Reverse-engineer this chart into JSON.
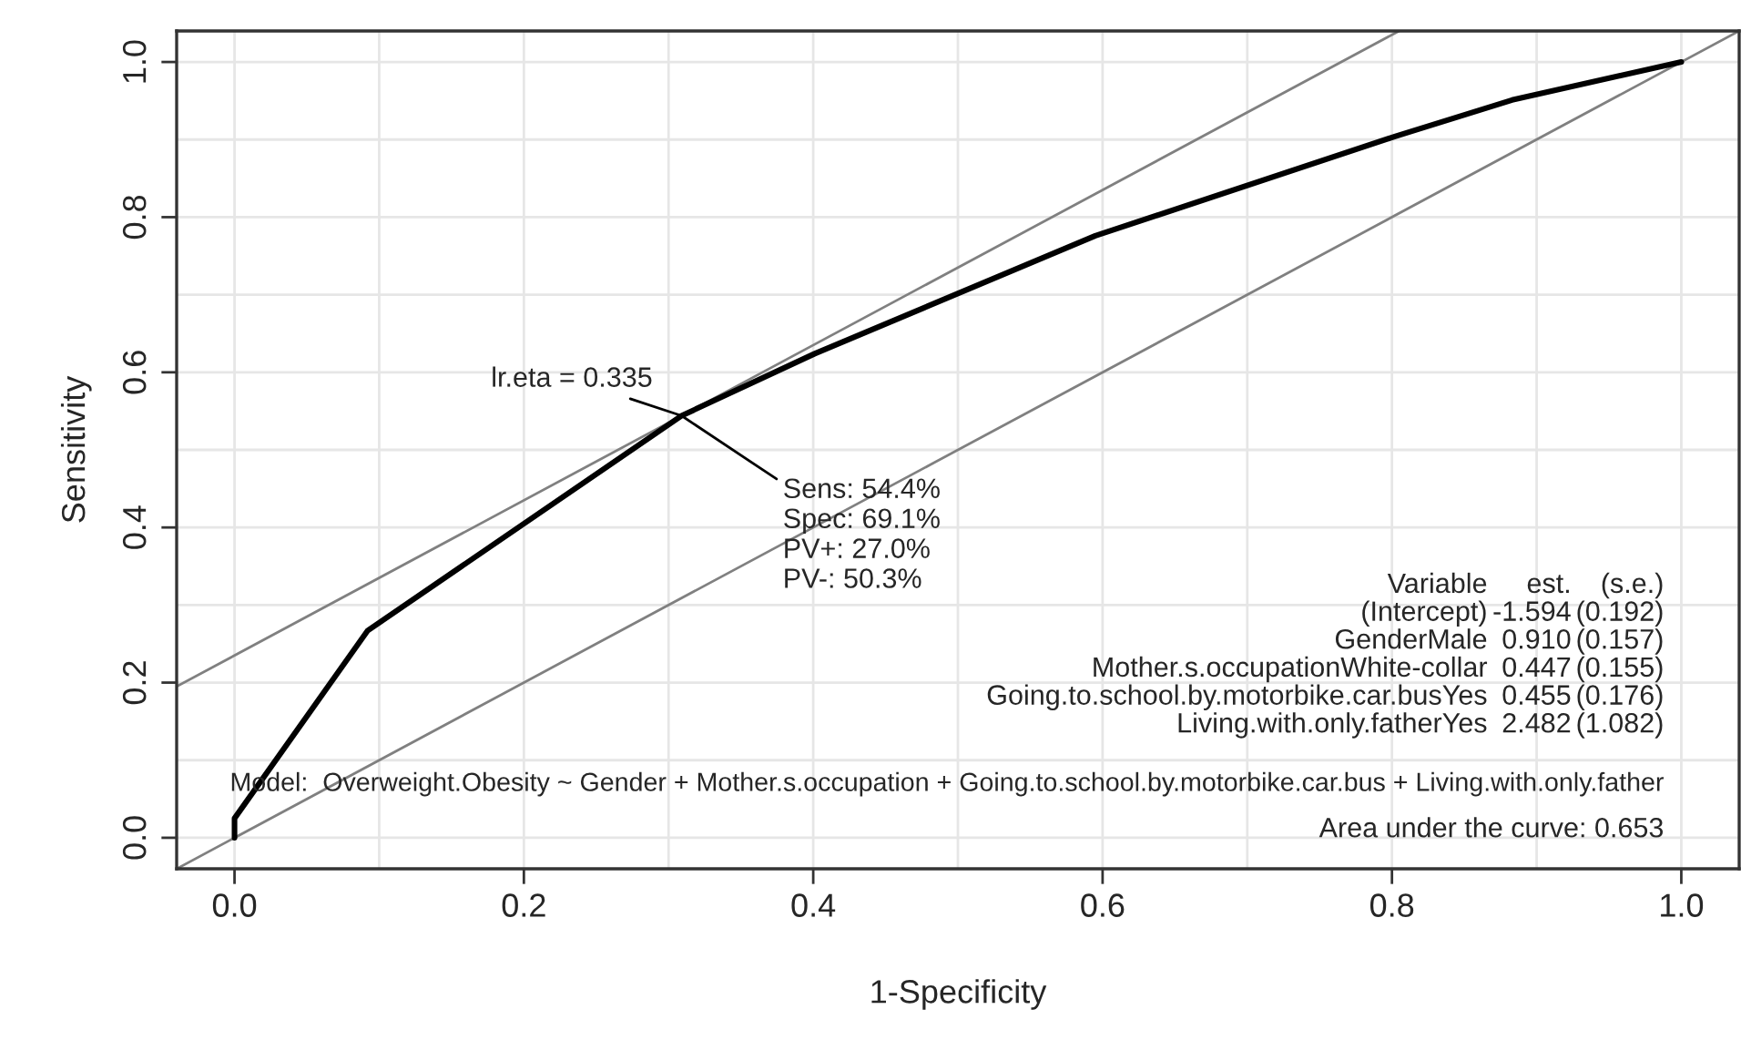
{
  "chart_data": {
    "type": "line",
    "xlabel": "1-Specificity",
    "ylabel": "Sensitivity",
    "xlim": [
      -0.04,
      1.04
    ],
    "ylim": [
      -0.04,
      1.04
    ],
    "xticks": [
      {
        "value": 0,
        "label": "0.0"
      },
      0.2,
      0.4,
      0.6,
      0.8,
      {
        "value": 1,
        "label": "1.0"
      }
    ],
    "yticks": [
      {
        "value": 0,
        "label": "0.0"
      },
      0.2,
      0.4,
      0.6,
      0.8,
      {
        "value": 1,
        "label": "1.0"
      }
    ],
    "grid": true,
    "legend": false,
    "marker": "none",
    "line_style": "solid",
    "series": [
      {
        "color": "#000000",
        "x": [
          0,
          0,
          0.092,
          0.309,
          0.401,
          0.595,
          0.802,
          0.883,
          1.0
        ],
        "values": [
          0,
          0.025,
          0.267,
          0.544,
          0.624,
          0.776,
          0.904,
          0.951,
          1.0
        ]
      },
      {
        "color": "#808080",
        "x": [
          -0.04,
          0.805
        ],
        "values": [
          0.195,
          1.04
        ]
      },
      {
        "color": "#808080",
        "x": [
          -0.04,
          1.04
        ],
        "values": [
          -0.04,
          1.04
        ]
      }
    ],
    "annotations": [
      {
        "text": "lr.eta = 0.335",
        "x": 0.309,
        "y": 0.544
      },
      {
        "text": "Sens: 54.4%\nSpec: 69.1%\nPV+: 27.0%\nPV-: 50.3%",
        "x": 0.309,
        "y": 0.544
      },
      "Variable",
      "est.",
      "(s.e.)",
      "(Intercept)",
      "-1.594",
      "(0.192)",
      "GenderMale",
      "0.910",
      "(0.157)",
      "Mother.s.occupationWhite-collar",
      "0.447",
      "(0.155)",
      "Going.to.school.by.motorbike.car.busYes",
      "0.455",
      "(0.176)",
      "Living.with.only.fatherYes",
      "2.482",
      "(1.082)",
      "Model:  Overweight.Obesity ~ Gender + Mother.s.occupation + Going.to.school.by.motorbike.car.bus + Living.with.only.father",
      "Area under the curve: 0.653"
    ]
  }
}
